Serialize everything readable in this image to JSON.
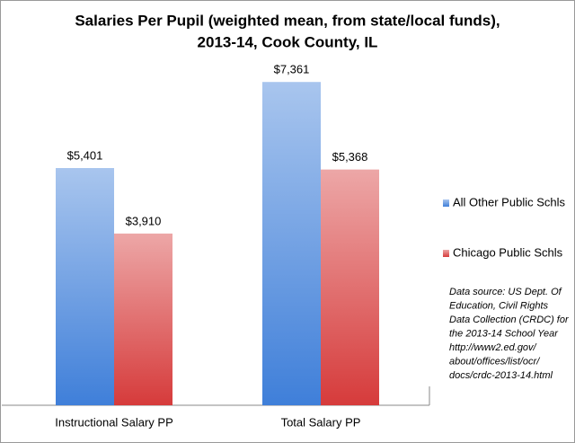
{
  "chart_data": {
    "type": "bar",
    "title": [
      "Salaries Per Pupil (weighted mean, from state/local funds),",
      "2013-14, Cook County, IL"
    ],
    "categories": [
      "Instructional Salary PP",
      "Total Salary PP"
    ],
    "series": [
      {
        "name": "All Other Public Schls",
        "color": "#3f7fd9",
        "values": [
          5401,
          7361
        ],
        "value_labels": [
          "$5,401",
          "$7,361"
        ]
      },
      {
        "name": "Chicago Public Schls",
        "color": "#d63b3b",
        "values": [
          3910,
          5368
        ],
        "value_labels": [
          "$3,910",
          "$5,368"
        ]
      }
    ],
    "ylim": [
      0,
      8000
    ],
    "annotation": [
      "Data source: US Dept. Of",
      "Education, Civil Rights",
      "Data Collection (CRDC) for",
      "the 2013-14 School Year",
      "http://www2.ed.gov/",
      "about/offices/list/ocr/",
      "docs/crdc-2013-14.html"
    ]
  }
}
